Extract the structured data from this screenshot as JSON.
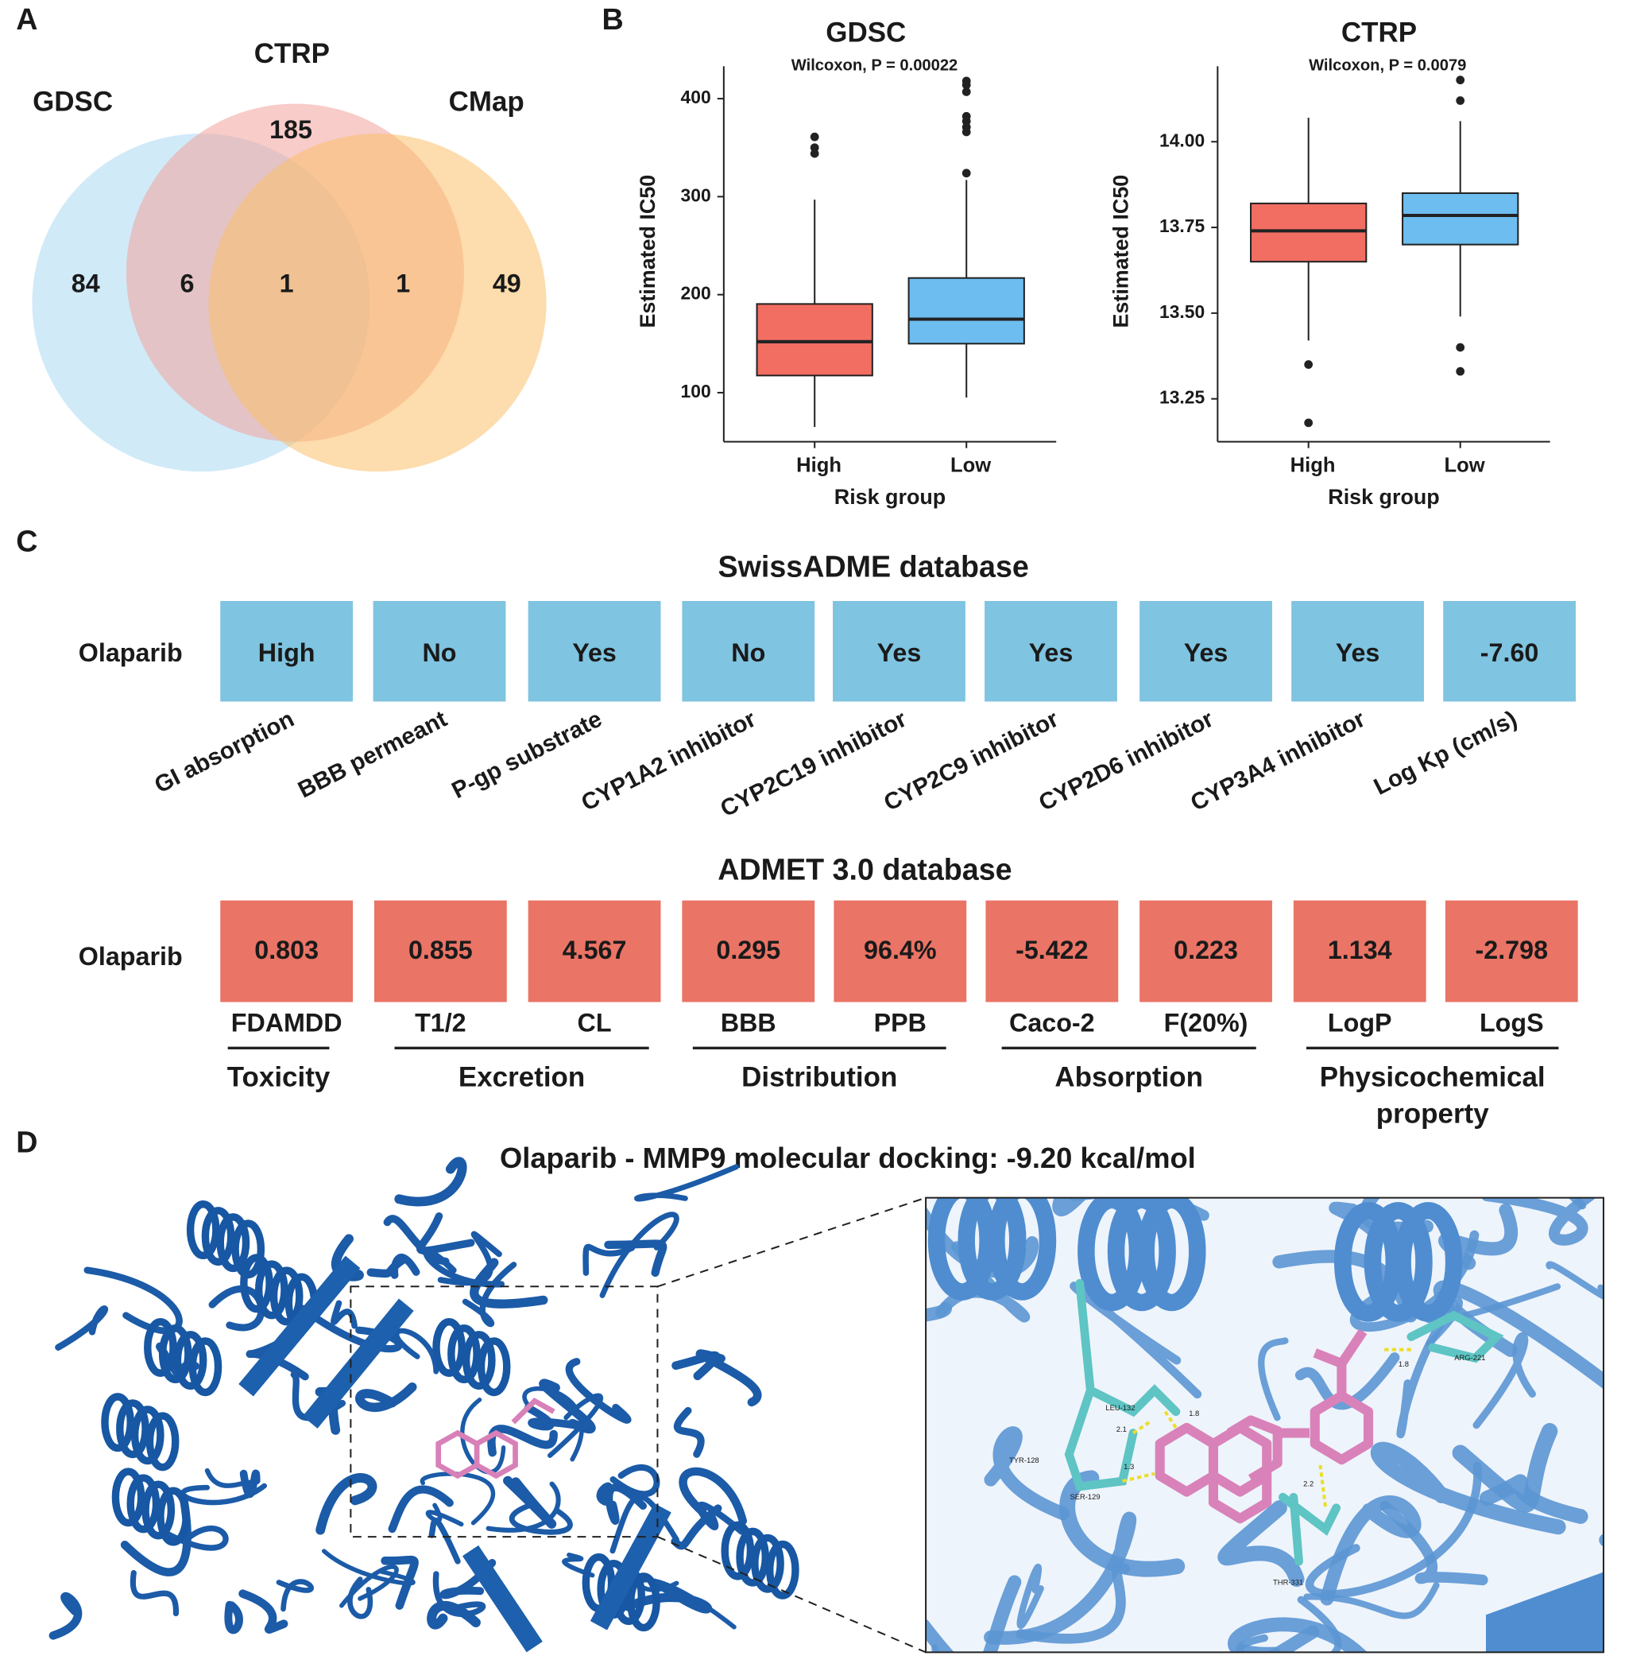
{
  "panel_labels": [
    "A",
    "B",
    "C",
    "D"
  ],
  "venn": {
    "sets": [
      {
        "name": "GDSC",
        "color": "#a9d8f2"
      },
      {
        "name": "CTRP",
        "color": "#f3a29d"
      },
      {
        "name": "CMap",
        "color": "#fbbf6a"
      }
    ],
    "regions": {
      "gdsc_only": 84,
      "ctrp_only": 185,
      "cmap_only": 49,
      "gdsc_ctrp": 6,
      "all": 1,
      "ctrp_cmap": 1
    }
  },
  "boxplots": [
    {
      "title": "GDSC",
      "subtitle": "Wilcoxon, P = 0.00022",
      "y_label": "Estimated IC50",
      "x_label": "Risk group",
      "ylim": [
        50,
        433
      ],
      "yticks": [
        100,
        200,
        300,
        400
      ],
      "groups": [
        {
          "name": "High",
          "color": "#f26e62",
          "whisker_low": 65,
          "q1": 117.5,
          "median": 152,
          "q3": 190.5,
          "whisker_high": 297,
          "outliers": [
            344,
            350,
            361
          ]
        },
        {
          "name": "Low",
          "color": "#6dbdf0",
          "whisker_low": 95,
          "q1": 150,
          "median": 175,
          "q3": 217,
          "whisker_high": 317,
          "outliers": [
            324,
            366,
            371,
            377,
            382,
            407,
            414,
            418
          ]
        }
      ]
    },
    {
      "title": "CTRP",
      "subtitle": "Wilcoxon, P = 0.0079",
      "y_label": "Estimated IC50",
      "x_label": "Risk group",
      "ylim": [
        13.125,
        14.22
      ],
      "yticks": [
        {
          "value": 13.25,
          "label": "13.25"
        },
        {
          "value": 13.5,
          "label": "13.50"
        },
        {
          "value": 13.75,
          "label": "13.75"
        },
        {
          "value": 14,
          "label": "14.00"
        }
      ],
      "groups": [
        {
          "name": "High",
          "color": "#f26e62",
          "whisker_low": 13.42,
          "q1": 13.65,
          "median": 13.74,
          "q3": 13.82,
          "whisker_high": 14.07,
          "outliers": [
            13.18,
            13.35
          ]
        },
        {
          "name": "Low",
          "color": "#6dbdf0",
          "whisker_low": 13.49,
          "q1": 13.7,
          "median": 13.785,
          "q3": 13.85,
          "whisker_high": 14.06,
          "outliers": [
            13.33,
            13.4,
            14.12,
            14.18
          ]
        }
      ]
    }
  ],
  "swissadme": {
    "title": "SwissADME database",
    "drug": "Olaparib",
    "color": "#7fc4e0",
    "items": [
      {
        "label": "GI absorption",
        "value": "High"
      },
      {
        "label": "BBB permeant",
        "value": "No"
      },
      {
        "label": "P-gp substrate",
        "value": "Yes"
      },
      {
        "label": "CYP1A2 inhibitor",
        "value": "No"
      },
      {
        "label": "CYP2C19 inhibitor",
        "value": "Yes"
      },
      {
        "label": "CYP2C9 inhibitor",
        "value": "Yes"
      },
      {
        "label": "CYP2D6 inhibitor",
        "value": "Yes"
      },
      {
        "label": "CYP3A4 inhibitor",
        "value": "Yes"
      },
      {
        "label": "Log Kp (cm/s)",
        "value": "-7.60"
      }
    ]
  },
  "admet": {
    "title": "ADMET 3.0 database",
    "drug": "Olaparib",
    "color": "#ea7465",
    "groups": [
      {
        "name": "Toxicity",
        "items": [
          {
            "label": "FDAMDD",
            "value": 0.803
          }
        ]
      },
      {
        "name": "Excretion",
        "items": [
          {
            "label": "T1/2",
            "value": 0.855
          },
          {
            "label": "CL",
            "value": 4.567
          }
        ]
      },
      {
        "name": "Distribution",
        "items": [
          {
            "label": "BBB",
            "value": 0.295
          },
          {
            "label": "PPB",
            "value": "96.4%"
          }
        ]
      },
      {
        "name": "Absorption",
        "items": [
          {
            "label": "Caco-2",
            "value": -5.422
          },
          {
            "label": "F(20%)",
            "value": 0.223
          }
        ]
      },
      {
        "name": "Physicochemical property",
        "items": [
          {
            "label": "LogP",
            "value": 1.134
          },
          {
            "label": "LogS",
            "value": -2.798
          }
        ]
      }
    ]
  },
  "docking": {
    "title": "Olaparib - MMP9 molecular docking: -9.20 kcal/mol",
    "residues": [
      "LEU-132",
      "TYR-128",
      "SER-129",
      "THR-331",
      "ARG-221"
    ],
    "distances": [
      "2.1",
      "1.3",
      "1.8",
      "2.2",
      "1.8"
    ]
  }
}
